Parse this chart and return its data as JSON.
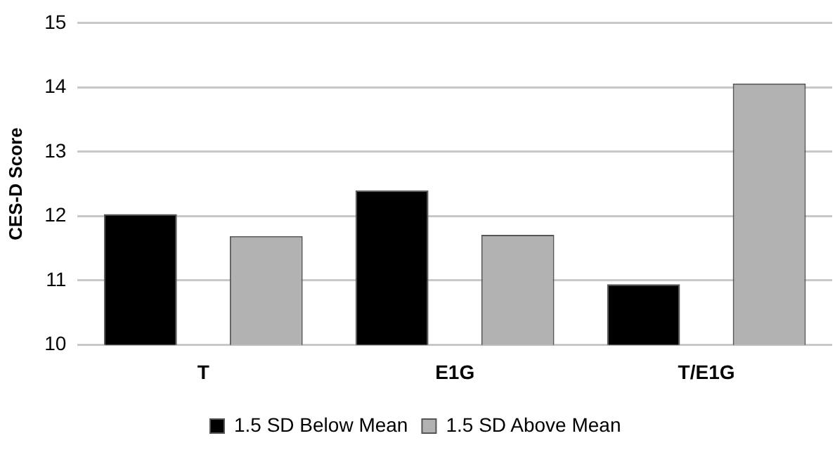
{
  "chart_data": {
    "type": "bar",
    "ylabel": "CES-D Score",
    "categories": [
      "T",
      "E1G",
      "T/E1G"
    ],
    "series": [
      {
        "name": "1.5 SD Below Mean",
        "color": "#000000",
        "values": [
          12.03,
          12.4,
          10.94
        ]
      },
      {
        "name": "1.5 SD Above Mean",
        "color": "#b2b2b2",
        "values": [
          11.69,
          11.71,
          14.06
        ]
      }
    ],
    "ylim": [
      10,
      15
    ],
    "yticks": [
      10,
      11,
      12,
      13,
      14,
      15
    ],
    "grid": "y",
    "legend": "bottom"
  }
}
